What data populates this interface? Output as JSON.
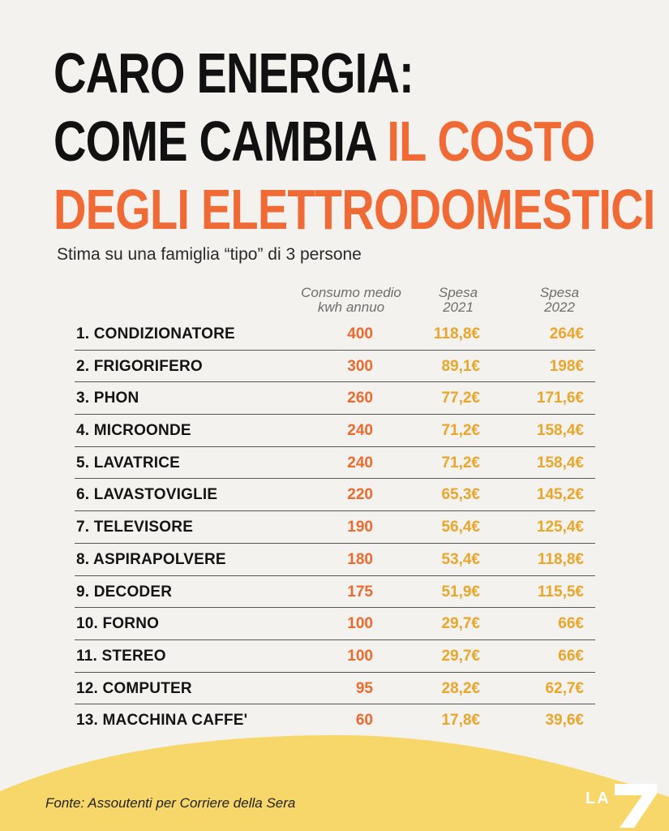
{
  "title": {
    "line1": "CARO ENERGIA:",
    "line2a": "COME CAMBIA",
    "line2b": "IL COSTO",
    "line3": "DEGLI ELETTRODOMESTICI"
  },
  "subtitle": "Stima su una famiglia “tipo” di 3 persone",
  "columns": {
    "kwh": [
      "Consumo medio",
      "kwh annuo"
    ],
    "spesa2021": [
      "Spesa",
      "2021"
    ],
    "spesa2022": [
      "Spesa",
      "2022"
    ]
  },
  "chart_data": {
    "type": "table",
    "title": "CARO ENERGIA: COME CAMBIA IL COSTO DEGLI ELETTRODOMESTICI",
    "subtitle": "Stima su una famiglia “tipo” di 3 persone",
    "columns": [
      "Consumo medio kwh annuo",
      "Spesa 2021",
      "Spesa 2022"
    ],
    "rows": [
      {
        "label": "1. CONDIZIONATORE",
        "kwh": "400",
        "s2021": "118,8€",
        "s2022": "264€"
      },
      {
        "label": "2. FRIGORIFERO",
        "kwh": "300",
        "s2021": "89,1€",
        "s2022": "198€"
      },
      {
        "label": "3. PHON",
        "kwh": "260",
        "s2021": "77,2€",
        "s2022": "171,6€"
      },
      {
        "label": "4. MICROONDE",
        "kwh": "240",
        "s2021": "71,2€",
        "s2022": "158,4€"
      },
      {
        "label": "5. LAVATRICE",
        "kwh": "240",
        "s2021": "71,2€",
        "s2022": "158,4€"
      },
      {
        "label": "6. LAVASTOVIGLIE",
        "kwh": "220",
        "s2021": "65,3€",
        "s2022": "145,2€"
      },
      {
        "label": "7. TELEVISORE",
        "kwh": "190",
        "s2021": "56,4€",
        "s2022": "125,4€"
      },
      {
        "label": "8. ASPIRAPOLVERE",
        "kwh": "180",
        "s2021": "53,4€",
        "s2022": "118,8€"
      },
      {
        "label": "9. DECODER",
        "kwh": "175",
        "s2021": "51,9€",
        "s2022": "115,5€"
      },
      {
        "label": "10. FORNO",
        "kwh": "100",
        "s2021": "29,7€",
        "s2022": "66€"
      },
      {
        "label": "11. STEREO",
        "kwh": "100",
        "s2021": "29,7€",
        "s2022": "66€"
      },
      {
        "label": "12. COMPUTER",
        "kwh": "95",
        "s2021": "28,2€",
        "s2022": "62,7€"
      },
      {
        "label": "13. MACCHINA CAFFE'",
        "kwh": "60",
        "s2021": "17,8€",
        "s2022": "39,6€"
      }
    ]
  },
  "source": "Fonte: Assoutenti per Corriere della Sera",
  "logo": {
    "text": "LA",
    "numeral": "7"
  },
  "colors": {
    "background": "#f3f2ee",
    "accent_orange": "#f06a35",
    "kwh_orange": "#ec6a2e",
    "price_yellow": "#e9a62b",
    "wave_yellow": "#f7d769"
  }
}
